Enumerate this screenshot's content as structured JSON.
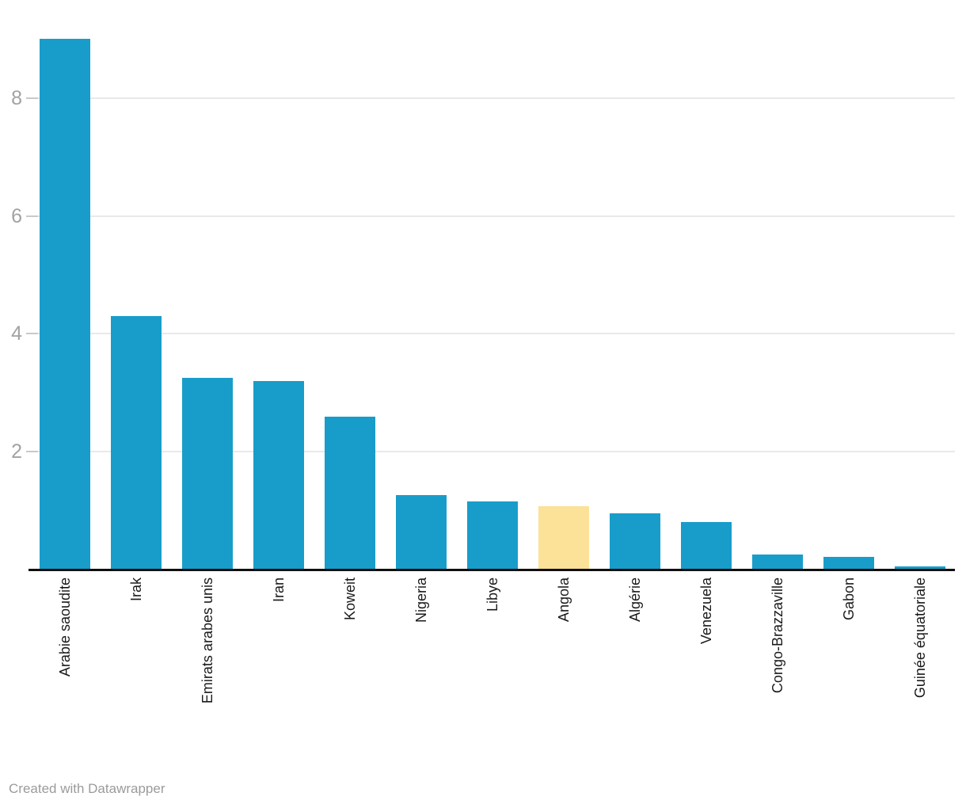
{
  "chart_data": {
    "type": "bar",
    "title": "",
    "xlabel": "",
    "ylabel": "",
    "categories": [
      "Arabie saoudite",
      "Irak",
      "Emirats arabes unis",
      "Iran",
      "Koweit",
      "Nigeria",
      "Libye",
      "Angola",
      "Algérie",
      "Venezuela",
      "Congo-Brazzaville",
      "Gabon",
      "Guinée équatoriale"
    ],
    "values": [
      9.0,
      4.3,
      3.25,
      3.2,
      2.6,
      1.26,
      1.15,
      1.08,
      0.96,
      0.8,
      0.26,
      0.22,
      0.06
    ],
    "highlighted_category": "Angola",
    "bar_color": "#189dca",
    "highlight_color": "#fce198",
    "yticks": [
      "2",
      "4",
      "6",
      "8"
    ],
    "ytick_values": [
      2,
      4,
      6,
      8
    ],
    "ylim": [
      0,
      9.36
    ],
    "grid": true,
    "legend": "none"
  },
  "footer": {
    "credit": "Created with Datawrapper"
  }
}
